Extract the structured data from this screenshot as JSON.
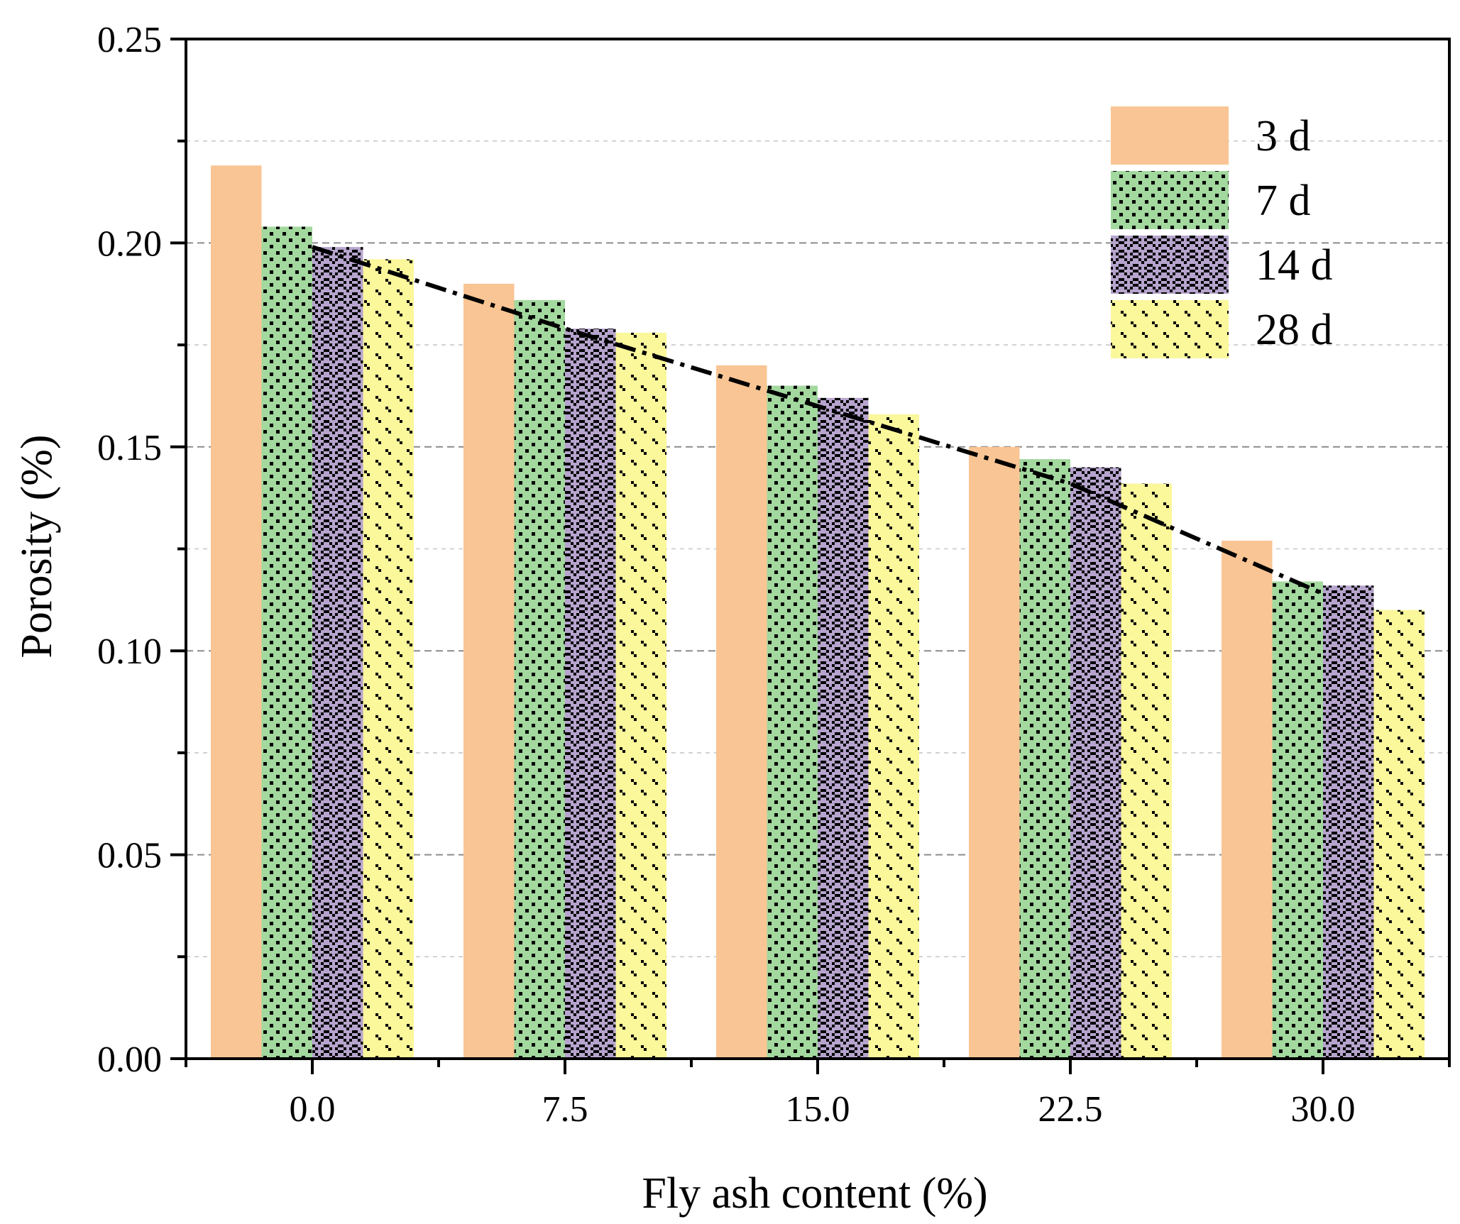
{
  "chart_data": {
    "type": "bar",
    "title": "",
    "xlabel": "Fly ash content (%)",
    "ylabel": "Porosity (%)",
    "categories": [
      "0.0",
      "7.5",
      "15.0",
      "22.5",
      "30.0"
    ],
    "ylim": [
      0,
      0.25
    ],
    "yticks": [
      "0.00",
      "0.05",
      "0.10",
      "0.15",
      "0.20",
      "0.25"
    ],
    "series": [
      {
        "name": "3 d",
        "color": "#f9c594",
        "pattern": "solid",
        "values": [
          0.219,
          0.19,
          0.17,
          0.15,
          0.127
        ]
      },
      {
        "name": "7 d",
        "color": "#a3d89e",
        "pattern": "dots",
        "values": [
          0.204,
          0.186,
          0.165,
          0.147,
          0.117
        ]
      },
      {
        "name": "14 d",
        "color": "#b6a4cd",
        "pattern": "weave",
        "values": [
          0.199,
          0.179,
          0.162,
          0.145,
          0.116
        ]
      },
      {
        "name": "28 d",
        "color": "#fbf79b",
        "pattern": "sparse",
        "values": [
          0.196,
          0.178,
          0.158,
          0.141,
          0.11
        ]
      }
    ],
    "trendline": {
      "style": "dash-dot",
      "color": "#000000",
      "points": [
        [
          0.0,
          0.199
        ],
        [
          7.5,
          0.179
        ],
        [
          15.0,
          0.16
        ],
        [
          22.5,
          0.141
        ],
        [
          30.0,
          0.114
        ]
      ]
    },
    "legend": "top-right",
    "grid": true
  }
}
